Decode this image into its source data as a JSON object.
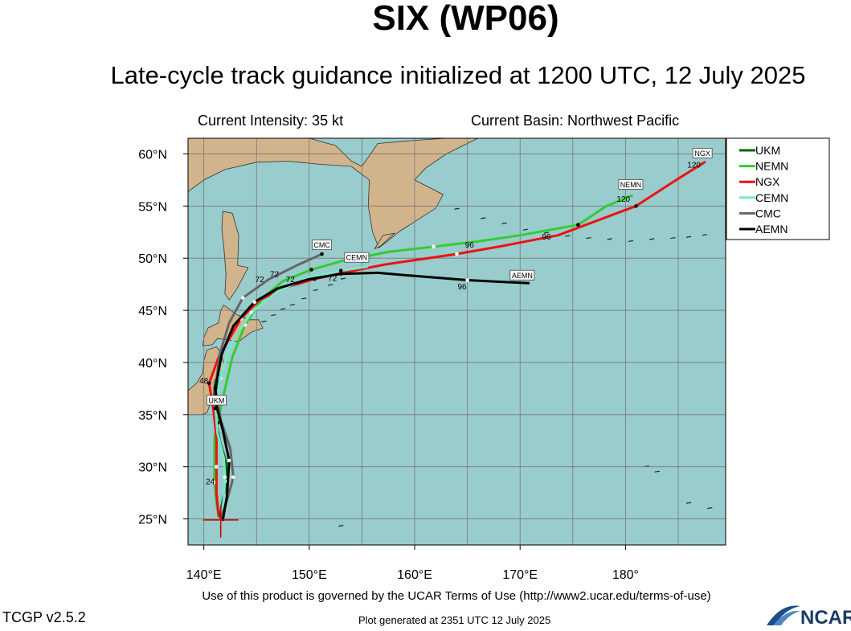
{
  "header": {
    "title": "SIX (WP06)",
    "subtitle": "Late-cycle track guidance initialized at 1200 UTC, 12 July 2025",
    "current_intensity": "Current Intensity: 35 kt",
    "current_basin": "Current Basin: Northwest Pacific"
  },
  "footer": {
    "terms": "Use of this product is governed by the UCAR Terms of Use (http://www2.ucar.edu/terms-of-use)",
    "version": "TCGP v2.5.2",
    "generated": "Plot generated at 2351 UTC   12 July 2025",
    "logo_text": "NCAR"
  },
  "colors": {
    "ocean": "#99cccc",
    "land": "#d2b48c",
    "grid": "#777777",
    "UKM": "#006400",
    "NEMN": "#33cc33",
    "NGX": "#ee1111",
    "CEMN": "#77e8c8",
    "CMC": "#666666",
    "AEMN": "#000000"
  },
  "chart_data": {
    "type": "line",
    "xlim": [
      138.5,
      189.5
    ],
    "ylim": [
      22.5,
      61.5
    ],
    "x_ticks": [
      140,
      150,
      160,
      170,
      180
    ],
    "x_tick_labels": [
      "140°E",
      "150°E",
      "160°E",
      "170°E",
      "180°"
    ],
    "y_ticks": [
      25,
      30,
      35,
      40,
      45,
      50,
      55,
      60
    ],
    "y_tick_labels": [
      "25°N",
      "30°N",
      "35°N",
      "40°N",
      "45°N",
      "50°N",
      "55°N",
      "60°N"
    ],
    "grid": true,
    "legend_position": "right-top",
    "legend": [
      "UKM",
      "NEMN",
      "NGX",
      "CEMN",
      "CMC",
      "AEMN"
    ],
    "initial_position": {
      "lon": 141.6,
      "lat": 24.9
    },
    "series": [
      {
        "name": "UKM",
        "tag": "UKM",
        "points": [
          [
            141.5,
            25.2
          ],
          [
            141.8,
            26.8
          ],
          [
            142.2,
            28.6
          ],
          [
            142.1,
            30.5
          ],
          [
            141.5,
            32.5
          ],
          [
            141.2,
            34.2
          ],
          [
            141.0,
            36.0
          ],
          [
            141.1,
            37.4
          ],
          [
            141.6,
            38.5
          ]
        ]
      },
      {
        "name": "NEMN",
        "tag": "NEMN",
        "points": [
          [
            141.4,
            25.4
          ],
          [
            141.2,
            26.5
          ],
          [
            141.0,
            28.5
          ],
          [
            141.0,
            30.8
          ],
          [
            141.0,
            32.7
          ],
          [
            141.3,
            34.2
          ],
          [
            141.9,
            37.0
          ],
          [
            142.7,
            40.5
          ],
          [
            143.9,
            43.6
          ],
          [
            145.6,
            46.2
          ],
          [
            147.5,
            47.8
          ],
          [
            150.2,
            48.9
          ],
          [
            153.0,
            49.7
          ],
          [
            157.5,
            50.6
          ],
          [
            161.8,
            51.1
          ],
          [
            166.0,
            51.6
          ],
          [
            170.0,
            52.2
          ],
          [
            175.5,
            53.2
          ],
          [
            178.2,
            55.0
          ],
          [
            180.6,
            56.0
          ]
        ]
      },
      {
        "name": "NGX",
        "tag": "NGX",
        "points": [
          [
            141.4,
            25.3
          ],
          [
            141.2,
            27.5
          ],
          [
            141.2,
            30.0
          ],
          [
            141.2,
            32.7
          ],
          [
            140.9,
            35.5
          ],
          [
            140.5,
            38.0
          ],
          [
            141.4,
            40.5
          ],
          [
            142.6,
            42.6
          ],
          [
            143.5,
            44.2
          ],
          [
            145.3,
            46.0
          ],
          [
            147.8,
            47.2
          ],
          [
            150.5,
            48.0
          ],
          [
            153.2,
            48.6
          ],
          [
            157.2,
            49.4
          ],
          [
            164.0,
            50.4
          ],
          [
            168.5,
            51.2
          ],
          [
            173.6,
            52.2
          ],
          [
            181.0,
            55.0
          ],
          [
            184.5,
            57.3
          ],
          [
            187.5,
            59.2
          ]
        ]
      },
      {
        "name": "CEMN",
        "tag": "CEMN",
        "points": [
          [
            141.7,
            25.2
          ],
          [
            141.9,
            27.0
          ],
          [
            142.0,
            29.0
          ],
          [
            141.9,
            30.8
          ],
          [
            141.3,
            33.2
          ],
          [
            141.1,
            35.6
          ],
          [
            141.6,
            38.8
          ],
          [
            142.7,
            42.0
          ],
          [
            144.5,
            44.8
          ],
          [
            147.0,
            46.8
          ],
          [
            150.0,
            48.2
          ],
          [
            153.0,
            48.8
          ],
          [
            155.5,
            49.2
          ]
        ]
      },
      {
        "name": "CMC",
        "tag": "CMC",
        "points": [
          [
            141.6,
            25.0
          ],
          [
            142.2,
            26.8
          ],
          [
            142.8,
            29.0
          ],
          [
            142.5,
            31.8
          ],
          [
            141.6,
            34.5
          ],
          [
            141.1,
            37.5
          ],
          [
            141.5,
            40.8
          ],
          [
            142.4,
            43.8
          ],
          [
            143.7,
            46.2
          ],
          [
            146.2,
            48.0
          ],
          [
            148.8,
            49.3
          ],
          [
            151.2,
            50.4
          ]
        ]
      },
      {
        "name": "AEMN",
        "tag": "AEMN",
        "points": [
          [
            141.8,
            24.9
          ],
          [
            142.2,
            27.2
          ],
          [
            142.4,
            30.6
          ],
          [
            141.8,
            33.5
          ],
          [
            141.2,
            35.8
          ],
          [
            141.1,
            37.6
          ],
          [
            141.7,
            40.8
          ],
          [
            142.8,
            43.5
          ],
          [
            144.8,
            45.8
          ],
          [
            147.0,
            47.1
          ],
          [
            150.0,
            48.0
          ],
          [
            153.0,
            48.5
          ],
          [
            156.5,
            48.6
          ],
          [
            160.0,
            48.3
          ],
          [
            165.0,
            47.9
          ],
          [
            170.8,
            47.6
          ]
        ]
      }
    ],
    "hour_labels": [
      {
        "text": "24",
        "lon": 140.6,
        "lat": 28.3
      },
      {
        "text": "48",
        "lon": 140.0,
        "lat": 38.0
      },
      {
        "text": "72",
        "lon": 145.3,
        "lat": 47.7
      },
      {
        "text": "72",
        "lon": 146.7,
        "lat": 48.2
      },
      {
        "text": "72",
        "lon": 148.2,
        "lat": 47.7
      },
      {
        "text": "72",
        "lon": 152.2,
        "lat": 47.8
      },
      {
        "text": "96",
        "lon": 165.2,
        "lat": 51.0
      },
      {
        "text": "96",
        "lon": 172.5,
        "lat": 51.8
      },
      {
        "text": "96",
        "lon": 164.5,
        "lat": 47.0
      },
      {
        "text": "120",
        "lon": 179.8,
        "lat": 55.4
      },
      {
        "text": "120",
        "lon": 186.5,
        "lat": 58.7
      }
    ]
  }
}
